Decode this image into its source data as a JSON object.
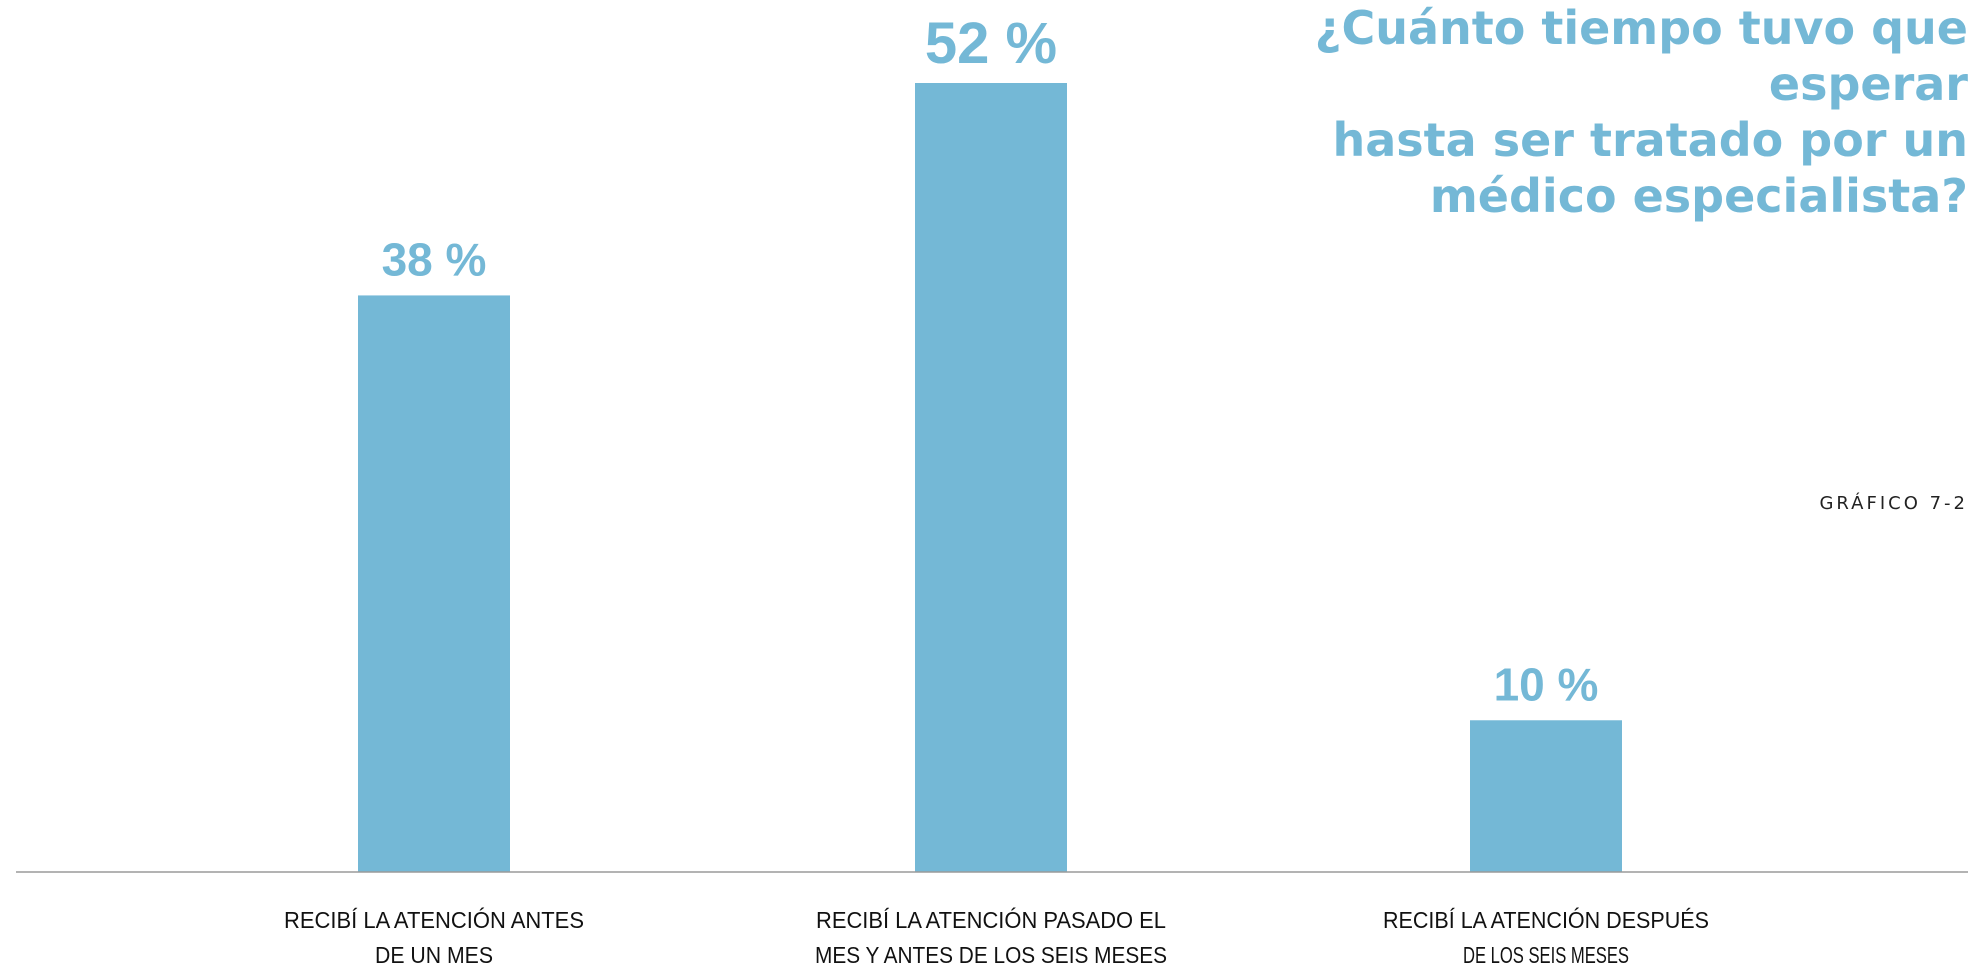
{
  "title_lines": [
    "¿Cuánto tiempo tuvo que esperar",
    "hasta ser tratado por un",
    "médico especialista?"
  ],
  "chart_code": "GRÁFICO 7-2",
  "colors": {
    "bar": "#74b8d6",
    "value_label": "#74b8d6",
    "category_label": "#111111",
    "baseline": "#9a9a9a"
  },
  "chart_data": {
    "type": "bar",
    "title": "¿Cuánto tiempo tuvo que esperar hasta ser tratado por un médico especialista?",
    "categories": [
      "RECIBÍ  LA ATENCIÓN ANTES DE UN MES",
      "RECIBÍ  LA ATENCIÓN PASADO EL MES Y ANTES DE LOS SEIS MESES",
      "RECIBÍ  LA ATENCIÓN DESPUÉS DE LOS SEIS MESES"
    ],
    "category_lines": [
      [
        "RECIBÍ  LA ATENCIÓN ANTES",
        "DE UN MES"
      ],
      [
        "RECIBÍ  LA ATENCIÓN PASADO EL",
        "MES Y ANTES DE LOS SEIS MESES"
      ],
      [
        "RECIBÍ  LA ATENCIÓN DESPUÉS",
        "DE LOS SEIS MESES"
      ]
    ],
    "values": [
      38,
      52,
      10
    ],
    "value_labels": [
      "38 %",
      "52 %",
      "10 %"
    ],
    "unit": "%",
    "xlabel": "",
    "ylabel": "",
    "ylim": [
      0,
      52
    ],
    "grid": false,
    "legend": "none"
  }
}
